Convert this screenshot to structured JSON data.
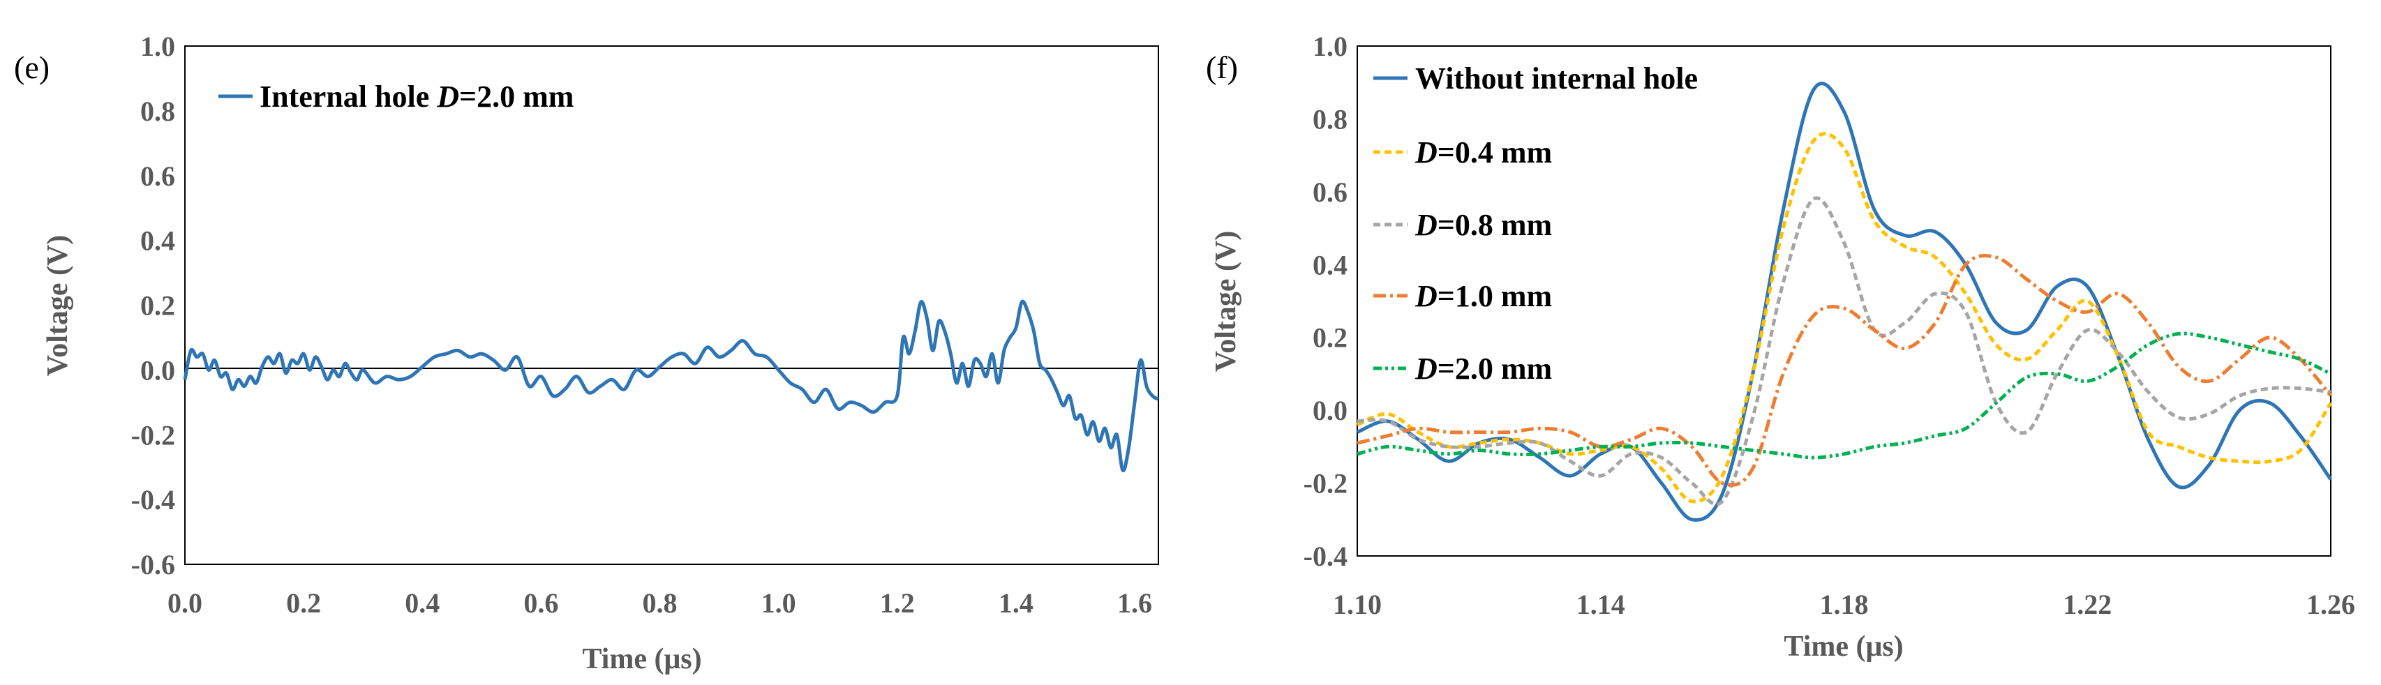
{
  "chart_data": [
    {
      "panel_label": "(e)",
      "type": "line",
      "xlabel": "Time (μs)",
      "ylabel": "Voltage (V)",
      "xlim": [
        0.0,
        1.64
      ],
      "ylim": [
        -0.6,
        1.0
      ],
      "x_ticks": [
        0.0,
        0.2,
        0.4,
        0.6,
        0.8,
        1.0,
        1.2,
        1.4,
        1.6
      ],
      "x_tick_labels": [
        "0.0",
        "0.2",
        "0.4",
        "0.6",
        "0.8",
        "1.0",
        "1.2",
        "1.4",
        "1.6"
      ],
      "y_ticks": [
        -0.6,
        -0.4,
        -0.2,
        0.0,
        0.2,
        0.4,
        0.6,
        0.8,
        1.0
      ],
      "y_tick_labels": [
        "-0.6",
        "-0.4",
        "-0.2",
        "0.0",
        "0.2",
        "0.4",
        "0.6",
        "0.8",
        "1.0"
      ],
      "legend": {
        "position": "top-left"
      },
      "series": [
        {
          "name": "Internal hole D=2.0 mm",
          "legend_prefix": "Internal hole ",
          "legend_var": "D",
          "legend_suffix": "=2.0 mm",
          "color": "#2E75B6",
          "dash": "solid",
          "x": [
            0.0,
            0.01,
            0.02,
            0.03,
            0.04,
            0.05,
            0.06,
            0.07,
            0.08,
            0.09,
            0.1,
            0.11,
            0.12,
            0.13,
            0.14,
            0.15,
            0.16,
            0.17,
            0.18,
            0.19,
            0.2,
            0.21,
            0.22,
            0.23,
            0.24,
            0.25,
            0.26,
            0.27,
            0.28,
            0.29,
            0.3,
            0.32,
            0.34,
            0.36,
            0.38,
            0.4,
            0.42,
            0.44,
            0.46,
            0.48,
            0.5,
            0.52,
            0.54,
            0.56,
            0.58,
            0.6,
            0.62,
            0.64,
            0.66,
            0.68,
            0.7,
            0.72,
            0.74,
            0.76,
            0.78,
            0.8,
            0.82,
            0.84,
            0.86,
            0.88,
            0.9,
            0.92,
            0.94,
            0.96,
            0.98,
            1.0,
            1.02,
            1.04,
            1.06,
            1.08,
            1.1,
            1.12,
            1.14,
            1.16,
            1.18,
            1.2,
            1.21,
            1.22,
            1.23,
            1.24,
            1.25,
            1.26,
            1.27,
            1.28,
            1.29,
            1.3,
            1.31,
            1.32,
            1.33,
            1.34,
            1.35,
            1.36,
            1.37,
            1.38,
            1.39,
            1.4,
            1.41,
            1.42,
            1.43,
            1.44,
            1.45,
            1.46,
            1.47,
            1.48,
            1.49,
            1.5,
            1.51,
            1.52,
            1.53,
            1.54,
            1.55,
            1.56,
            1.57,
            1.58,
            1.59,
            1.6,
            1.61,
            1.62,
            1.63,
            1.64
          ],
          "y": [
            -0.03,
            0.06,
            0.04,
            0.05,
            0.0,
            0.03,
            -0.02,
            -0.01,
            -0.06,
            -0.03,
            -0.05,
            -0.02,
            -0.04,
            0.01,
            0.04,
            0.02,
            0.05,
            -0.01,
            0.03,
            0.02,
            0.05,
            0.0,
            0.04,
            0.01,
            -0.03,
            0.0,
            -0.02,
            0.02,
            -0.01,
            -0.03,
            0.0,
            -0.04,
            -0.02,
            -0.03,
            -0.02,
            0.01,
            0.04,
            0.05,
            0.06,
            0.04,
            0.05,
            0.03,
            0.0,
            0.04,
            -0.05,
            -0.02,
            -0.08,
            -0.06,
            -0.02,
            -0.07,
            -0.05,
            -0.03,
            -0.06,
            0.0,
            -0.02,
            0.01,
            0.04,
            0.05,
            0.02,
            0.07,
            0.04,
            0.06,
            0.09,
            0.05,
            0.04,
            0.0,
            -0.04,
            -0.06,
            -0.1,
            -0.06,
            -0.12,
            -0.1,
            -0.11,
            -0.13,
            -0.1,
            -0.08,
            0.1,
            0.05,
            0.12,
            0.21,
            0.16,
            0.06,
            0.15,
            0.12,
            0.05,
            -0.04,
            0.02,
            -0.05,
            0.03,
            0.02,
            -0.02,
            0.05,
            -0.04,
            0.06,
            0.1,
            0.13,
            0.21,
            0.18,
            0.12,
            0.02,
            0.0,
            -0.03,
            -0.07,
            -0.11,
            -0.08,
            -0.15,
            -0.14,
            -0.2,
            -0.16,
            -0.22,
            -0.18,
            -0.24,
            -0.2,
            -0.31,
            -0.24,
            -0.1,
            0.03,
            -0.05,
            -0.08,
            -0.09
          ]
        }
      ]
    },
    {
      "panel_label": "(f)",
      "type": "line",
      "xlabel": "Time (μs)",
      "ylabel": "Voltage (V)",
      "xlim": [
        1.1,
        1.26
      ],
      "ylim": [
        -0.4,
        1.0
      ],
      "x_ticks": [
        1.1,
        1.14,
        1.18,
        1.22,
        1.26
      ],
      "x_tick_labels": [
        "1.10",
        "1.14",
        "1.18",
        "1.22",
        "1.26"
      ],
      "y_ticks": [
        -0.4,
        -0.2,
        0.0,
        0.2,
        0.4,
        0.6,
        0.8,
        1.0
      ],
      "y_tick_labels": [
        "-0.4",
        "-0.2",
        "0.0",
        "0.2",
        "0.4",
        "0.6",
        "0.8",
        "1.0"
      ],
      "legend": {
        "position": "top-left"
      },
      "series": [
        {
          "name": "Without internal hole",
          "legend_prefix": "Without internal hole",
          "legend_var": "",
          "legend_suffix": "",
          "color": "#2E75B6",
          "dash": "solid",
          "x": [
            1.1,
            1.105,
            1.11,
            1.115,
            1.12,
            1.125,
            1.13,
            1.135,
            1.14,
            1.145,
            1.15,
            1.155,
            1.16,
            1.165,
            1.17,
            1.175,
            1.18,
            1.185,
            1.19,
            1.195,
            1.2,
            1.205,
            1.21,
            1.215,
            1.22,
            1.225,
            1.23,
            1.235,
            1.24,
            1.245,
            1.25,
            1.255,
            1.26
          ],
          "y": [
            -0.06,
            -0.03,
            -0.08,
            -0.14,
            -0.09,
            -0.08,
            -0.13,
            -0.18,
            -0.12,
            -0.1,
            -0.2,
            -0.3,
            -0.23,
            0.1,
            0.55,
            0.88,
            0.82,
            0.55,
            0.48,
            0.49,
            0.4,
            0.24,
            0.22,
            0.34,
            0.34,
            0.15,
            -0.08,
            -0.21,
            -0.15,
            0.0,
            0.02,
            -0.07,
            -0.19
          ]
        },
        {
          "name": "D=0.4 mm",
          "legend_prefix": "",
          "legend_var": "D",
          "legend_suffix": "=0.4 mm",
          "color": "#FFC000",
          "dash": "dash",
          "x": [
            1.1,
            1.105,
            1.11,
            1.115,
            1.12,
            1.125,
            1.13,
            1.135,
            1.14,
            1.145,
            1.15,
            1.155,
            1.16,
            1.165,
            1.17,
            1.175,
            1.18,
            1.185,
            1.19,
            1.195,
            1.2,
            1.205,
            1.21,
            1.215,
            1.22,
            1.225,
            1.23,
            1.235,
            1.24,
            1.245,
            1.25,
            1.255,
            1.26
          ],
          "y": [
            -0.04,
            -0.01,
            -0.06,
            -0.1,
            -0.09,
            -0.08,
            -0.09,
            -0.12,
            -0.11,
            -0.1,
            -0.16,
            -0.25,
            -0.18,
            0.1,
            0.5,
            0.74,
            0.72,
            0.52,
            0.45,
            0.42,
            0.32,
            0.18,
            0.14,
            0.22,
            0.3,
            0.15,
            -0.06,
            -0.1,
            -0.13,
            -0.14,
            -0.14,
            -0.11,
            0.02
          ]
        },
        {
          "name": "D=0.8 mm",
          "legend_prefix": "",
          "legend_var": "D",
          "legend_suffix": "=0.8 mm",
          "color": "#A5A5A5",
          "dash": "dash",
          "x": [
            1.1,
            1.105,
            1.11,
            1.115,
            1.12,
            1.125,
            1.13,
            1.135,
            1.14,
            1.145,
            1.15,
            1.155,
            1.16,
            1.165,
            1.17,
            1.175,
            1.18,
            1.185,
            1.19,
            1.195,
            1.2,
            1.205,
            1.21,
            1.215,
            1.22,
            1.225,
            1.23,
            1.235,
            1.24,
            1.245,
            1.25,
            1.255,
            1.26
          ],
          "y": [
            -0.03,
            -0.03,
            -0.08,
            -0.1,
            -0.1,
            -0.09,
            -0.09,
            -0.14,
            -0.18,
            -0.12,
            -0.13,
            -0.2,
            -0.25,
            -0.02,
            0.35,
            0.58,
            0.46,
            0.22,
            0.24,
            0.32,
            0.27,
            0.02,
            -0.06,
            0.1,
            0.22,
            0.16,
            0.05,
            -0.02,
            -0.01,
            0.04,
            0.06,
            0.06,
            0.05
          ]
        },
        {
          "name": "D=1.0 mm",
          "legend_prefix": "",
          "legend_var": "D",
          "legend_suffix": "=1.0 mm",
          "color": "#ED7D31",
          "dash": "dashdot",
          "x": [
            1.1,
            1.105,
            1.11,
            1.115,
            1.12,
            1.125,
            1.13,
            1.135,
            1.14,
            1.145,
            1.15,
            1.155,
            1.16,
            1.165,
            1.17,
            1.175,
            1.18,
            1.185,
            1.19,
            1.195,
            1.2,
            1.205,
            1.21,
            1.215,
            1.22,
            1.225,
            1.23,
            1.235,
            1.24,
            1.245,
            1.25,
            1.255,
            1.26
          ],
          "y": [
            -0.09,
            -0.07,
            -0.05,
            -0.06,
            -0.06,
            -0.06,
            -0.05,
            -0.06,
            -0.1,
            -0.08,
            -0.05,
            -0.1,
            -0.2,
            -0.16,
            0.1,
            0.26,
            0.28,
            0.22,
            0.17,
            0.24,
            0.4,
            0.42,
            0.36,
            0.3,
            0.27,
            0.32,
            0.24,
            0.12,
            0.08,
            0.14,
            0.2,
            0.14,
            0.04
          ]
        },
        {
          "name": "D=2.0 mm",
          "legend_prefix": "",
          "legend_var": "D",
          "legend_suffix": "=2.0 mm",
          "color": "#00B050",
          "dash": "dashdotdot",
          "x": [
            1.1,
            1.105,
            1.11,
            1.115,
            1.12,
            1.125,
            1.13,
            1.135,
            1.14,
            1.145,
            1.15,
            1.155,
            1.16,
            1.165,
            1.17,
            1.175,
            1.18,
            1.185,
            1.19,
            1.195,
            1.2,
            1.205,
            1.21,
            1.215,
            1.22,
            1.225,
            1.23,
            1.235,
            1.24,
            1.245,
            1.25,
            1.255,
            1.26
          ],
          "y": [
            -0.12,
            -0.1,
            -0.11,
            -0.12,
            -0.11,
            -0.12,
            -0.12,
            -0.11,
            -0.1,
            -0.1,
            -0.09,
            -0.09,
            -0.1,
            -0.11,
            -0.12,
            -0.13,
            -0.12,
            -0.1,
            -0.09,
            -0.07,
            -0.05,
            0.02,
            0.09,
            0.1,
            0.08,
            0.12,
            0.18,
            0.21,
            0.2,
            0.18,
            0.16,
            0.14,
            0.1
          ]
        }
      ]
    }
  ]
}
